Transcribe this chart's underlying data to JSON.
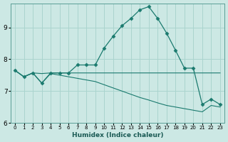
{
  "xlabel": "Humidex (Indice chaleur)",
  "xlim": [
    -0.5,
    23.5
  ],
  "ylim": [
    6.0,
    9.75
  ],
  "yticks": [
    6,
    7,
    8,
    9
  ],
  "xticks": [
    0,
    1,
    2,
    3,
    4,
    5,
    6,
    7,
    8,
    9,
    10,
    11,
    12,
    13,
    14,
    15,
    16,
    17,
    18,
    19,
    20,
    21,
    22,
    23
  ],
  "background_color": "#cce8e4",
  "grid_color": "#aad4ce",
  "line_color": "#1a7a6e",
  "lines": [
    {
      "x": [
        0,
        1,
        2,
        3,
        4,
        5,
        6,
        7,
        8,
        9,
        10,
        11,
        12,
        13,
        14,
        15,
        16,
        17,
        18,
        19,
        20,
        21,
        22,
        23
      ],
      "y": [
        7.65,
        7.45,
        7.57,
        7.25,
        7.57,
        7.57,
        7.57,
        7.82,
        7.82,
        7.82,
        8.35,
        8.72,
        9.05,
        9.28,
        9.55,
        9.65,
        9.28,
        8.82,
        8.28,
        7.72,
        7.72,
        6.58,
        6.75,
        6.58
      ],
      "marker": "D",
      "markersize": 2.5
    },
    {
      "x": [
        0,
        1,
        2,
        3,
        4,
        5,
        6,
        7,
        8,
        9,
        10,
        11,
        12,
        13,
        14,
        15,
        16,
        17,
        18,
        19,
        20,
        21,
        22,
        23
      ],
      "y": [
        7.65,
        7.45,
        7.57,
        7.55,
        7.57,
        7.57,
        7.57,
        7.57,
        7.57,
        7.57,
        7.57,
        7.57,
        7.57,
        7.57,
        7.57,
        7.57,
        7.57,
        7.57,
        7.57,
        7.57,
        7.57,
        7.57,
        7.57,
        7.57
      ],
      "marker": null,
      "markersize": 0
    },
    {
      "x": [
        0,
        1,
        2,
        3,
        4,
        5,
        6,
        7,
        8,
        9,
        10,
        11,
        12,
        13,
        14,
        15,
        16,
        17,
        18,
        19,
        20,
        21,
        22,
        23
      ],
      "y": [
        7.65,
        7.45,
        7.57,
        7.25,
        7.55,
        7.5,
        7.45,
        7.4,
        7.35,
        7.3,
        7.2,
        7.1,
        7.0,
        6.9,
        6.8,
        6.72,
        6.63,
        6.55,
        6.5,
        6.45,
        6.4,
        6.35,
        6.55,
        6.5
      ],
      "marker": null,
      "markersize": 0
    }
  ]
}
